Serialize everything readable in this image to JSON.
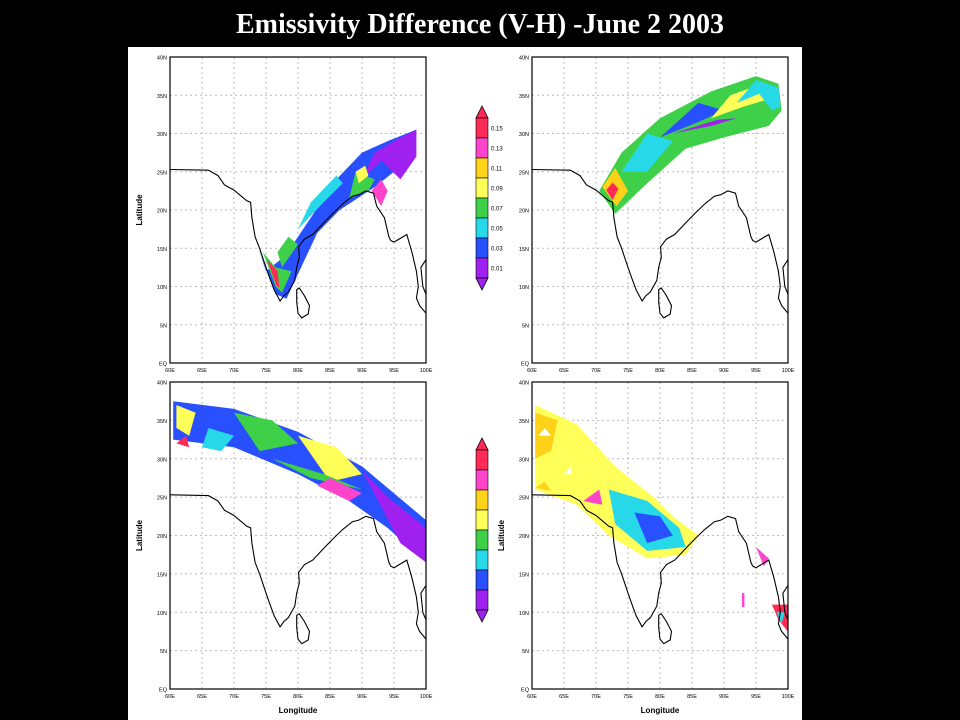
{
  "title": "Emissivity Difference (V-H) -June 2 2003",
  "axes": {
    "xlabel": "Longitude",
    "ylabel": "Latitude",
    "x_ticks": [
      "60E",
      "65E",
      "70E",
      "75E",
      "80E",
      "85E",
      "90E",
      "95E",
      "100E"
    ],
    "y_ticks": [
      "EQ",
      "5N",
      "10N",
      "15N",
      "20N",
      "25N",
      "30N",
      "35N",
      "40N"
    ],
    "x_range_deg": [
      60,
      100
    ],
    "y_range_deg": [
      0,
      40
    ]
  },
  "legend": {
    "values": [
      "0.15",
      "0.13",
      "0.11",
      "0.09",
      "0.07",
      "0.05",
      "0.03",
      "0.01"
    ],
    "colors": [
      "#ff2a55",
      "#ff44cc",
      "#ffd21a",
      "#ffff5a",
      "#3fd04a",
      "#27d8e8",
      "#2850ff",
      "#a020f0"
    ]
  },
  "maps": [
    {
      "name": "top-left",
      "show_ylabel": true,
      "show_xlabel": false
    },
    {
      "name": "top-right",
      "show_ylabel": false,
      "show_xlabel": false
    },
    {
      "name": "bottom-left",
      "show_ylabel": true,
      "show_xlabel": true
    },
    {
      "name": "bottom-right",
      "show_ylabel": true,
      "show_xlabel": true
    }
  ]
}
